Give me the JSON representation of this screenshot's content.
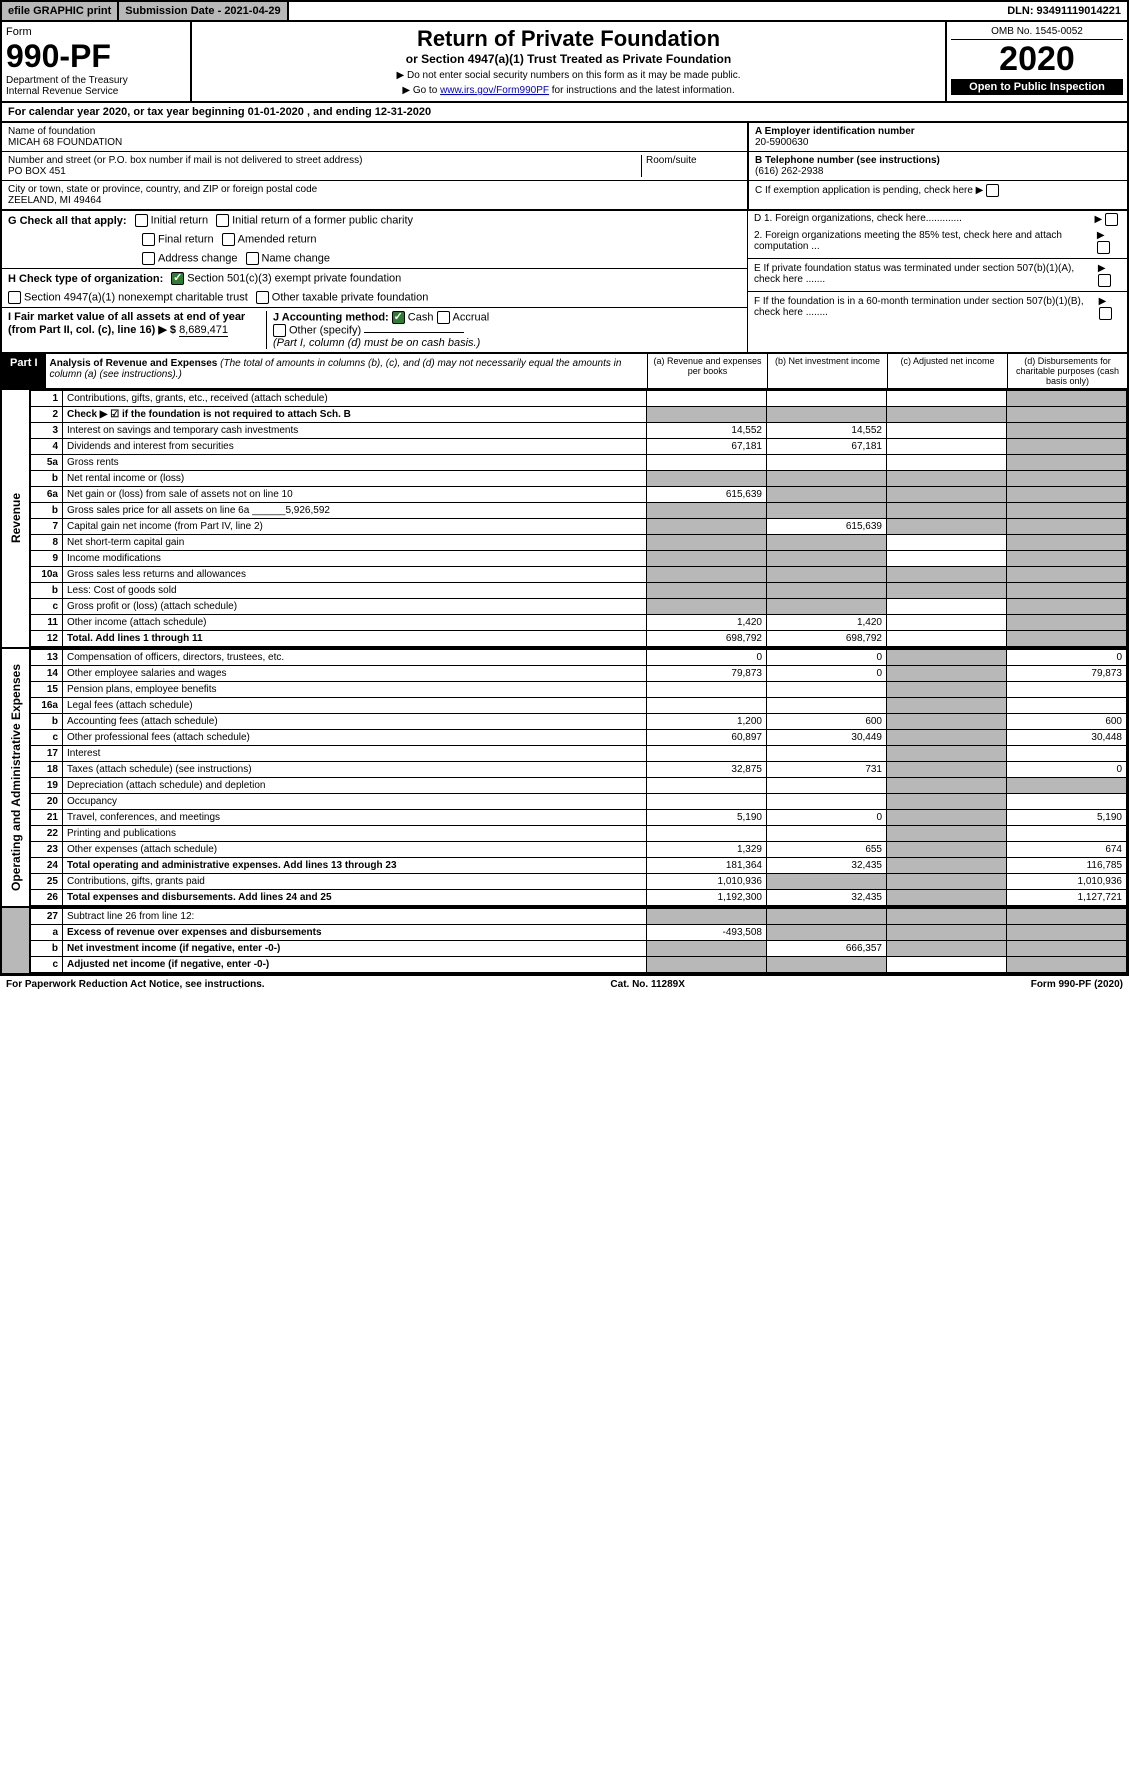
{
  "top": {
    "efile": "efile GRAPHIC print",
    "submission": "Submission Date - 2021-04-29",
    "dln": "DLN: 93491119014221"
  },
  "header": {
    "form_label": "Form",
    "form_num": "990-PF",
    "dept": "Department of the Treasury",
    "irs": "Internal Revenue Service",
    "title": "Return of Private Foundation",
    "subtitle": "or Section 4947(a)(1) Trust Treated as Private Foundation",
    "bullet1": "▶ Do not enter social security numbers on this form as it may be made public.",
    "bullet2_pre": "▶ Go to ",
    "bullet2_link": "www.irs.gov/Form990PF",
    "bullet2_post": " for instructions and the latest information.",
    "omb": "OMB No. 1545-0052",
    "year": "2020",
    "open": "Open to Public Inspection"
  },
  "cal": "For calendar year 2020, or tax year beginning 01-01-2020                          , and ending 12-31-2020",
  "id": {
    "name_label": "Name of foundation",
    "name": "MICAH 68 FOUNDATION",
    "addr_label": "Number and street (or P.O. box number if mail is not delivered to street address)",
    "room_label": "Room/suite",
    "addr": "PO BOX 451",
    "city_label": "City or town, state or province, country, and ZIP or foreign postal code",
    "city": "ZEELAND, MI  49464",
    "a_label": "A Employer identification number",
    "a_val": "20-5900630",
    "b_label": "B Telephone number (see instructions)",
    "b_val": "(616) 262-2938",
    "c_label": "C If exemption application is pending, check here"
  },
  "checks": {
    "g_label": "G Check all that apply:",
    "g1": "Initial return",
    "g2": "Initial return of a former public charity",
    "g3": "Final return",
    "g4": "Amended return",
    "g5": "Address change",
    "g6": "Name change",
    "h_label": "H Check type of organization:",
    "h1": "Section 501(c)(3) exempt private foundation",
    "h2": "Section 4947(a)(1) nonexempt charitable trust",
    "h3": "Other taxable private foundation",
    "i_label": "I Fair market value of all assets at end of year (from Part II, col. (c), line 16) ▶ $",
    "i_val": "8,689,471",
    "j_label": "J Accounting method:",
    "j1": "Cash",
    "j2": "Accrual",
    "j3": "Other (specify)",
    "j_note": "(Part I, column (d) must be on cash basis.)",
    "d1": "D 1. Foreign organizations, check here.............",
    "d2": "2. Foreign organizations meeting the 85% test, check here and attach computation ...",
    "e": "E  If private foundation status was terminated under section 507(b)(1)(A), check here .......",
    "f": "F  If the foundation is in a 60-month termination under section 507(b)(1)(B), check here ........"
  },
  "part1": {
    "label": "Part I",
    "title": "Analysis of Revenue and Expenses",
    "note": "(The total of amounts in columns (b), (c), and (d) may not necessarily equal the amounts in column (a) (see instructions).)",
    "col_a": "(a)    Revenue and expenses per books",
    "col_b": "(b)  Net investment income",
    "col_c": "(c)  Adjusted net income",
    "col_d": "(d)  Disbursements for charitable purposes (cash basis only)"
  },
  "rows": [
    {
      "n": "1",
      "d": "Contributions, gifts, grants, etc., received (attach schedule)",
      "a": "",
      "b": "",
      "c": "",
      "dS": true
    },
    {
      "n": "2",
      "d": "Check ▶ ☑ if the foundation is not required to attach Sch. B",
      "a": "",
      "b": "",
      "c": "",
      "dS": true,
      "bold": true,
      "aS": true,
      "bS": true,
      "cS": true
    },
    {
      "n": "3",
      "d": "Interest on savings and temporary cash investments",
      "a": "14,552",
      "b": "14,552",
      "c": "",
      "dS": true
    },
    {
      "n": "4",
      "d": "Dividends and interest from securities",
      "a": "67,181",
      "b": "67,181",
      "c": "",
      "dS": true
    },
    {
      "n": "5a",
      "d": "Gross rents",
      "a": "",
      "b": "",
      "c": "",
      "dS": true
    },
    {
      "n": "b",
      "d": "Net rental income or (loss)",
      "a": "",
      "aS": true,
      "bS": true,
      "cS": true,
      "dS": true
    },
    {
      "n": "6a",
      "d": "Net gain or (loss) from sale of assets not on line 10",
      "a": "615,639",
      "bS": true,
      "cS": true,
      "dS": true
    },
    {
      "n": "b",
      "d": "Gross sales price for all assets on line 6a ______5,926,592",
      "aS": true,
      "bS": true,
      "cS": true,
      "dS": true
    },
    {
      "n": "7",
      "d": "Capital gain net income (from Part IV, line 2)",
      "aS": true,
      "b": "615,639",
      "cS": true,
      "dS": true
    },
    {
      "n": "8",
      "d": "Net short-term capital gain",
      "aS": true,
      "bS": true,
      "c": "",
      "dS": true
    },
    {
      "n": "9",
      "d": "Income modifications",
      "aS": true,
      "bS": true,
      "c": "",
      "dS": true
    },
    {
      "n": "10a",
      "d": "Gross sales less returns and allowances",
      "aS": true,
      "bS": true,
      "cS": true,
      "dS": true
    },
    {
      "n": "b",
      "d": "Less: Cost of goods sold",
      "aS": true,
      "bS": true,
      "cS": true,
      "dS": true
    },
    {
      "n": "c",
      "d": "Gross profit or (loss) (attach schedule)",
      "aS": true,
      "bS": true,
      "c": "",
      "dS": true
    },
    {
      "n": "11",
      "d": "Other income (attach schedule)",
      "a": "1,420",
      "b": "1,420",
      "c": "",
      "dS": true
    },
    {
      "n": "12",
      "d": "Total. Add lines 1 through 11",
      "a": "698,792",
      "b": "698,792",
      "c": "",
      "dS": true,
      "bold": true
    }
  ],
  "oprows": [
    {
      "n": "13",
      "d": "Compensation of officers, directors, trustees, etc.",
      "a": "0",
      "b": "0",
      "cS": true,
      "dv": "0"
    },
    {
      "n": "14",
      "d": "Other employee salaries and wages",
      "a": "79,873",
      "b": "0",
      "cS": true,
      "dv": "79,873"
    },
    {
      "n": "15",
      "d": "Pension plans, employee benefits",
      "a": "",
      "b": "",
      "cS": true,
      "dv": ""
    },
    {
      "n": "16a",
      "d": "Legal fees (attach schedule)",
      "a": "",
      "b": "",
      "cS": true,
      "dv": ""
    },
    {
      "n": "b",
      "d": "Accounting fees (attach schedule)",
      "a": "1,200",
      "b": "600",
      "cS": true,
      "dv": "600"
    },
    {
      "n": "c",
      "d": "Other professional fees (attach schedule)",
      "a": "60,897",
      "b": "30,449",
      "cS": true,
      "dv": "30,448"
    },
    {
      "n": "17",
      "d": "Interest",
      "a": "",
      "b": "",
      "cS": true,
      "dv": ""
    },
    {
      "n": "18",
      "d": "Taxes (attach schedule) (see instructions)",
      "a": "32,875",
      "b": "731",
      "cS": true,
      "dv": "0"
    },
    {
      "n": "19",
      "d": "Depreciation (attach schedule) and depletion",
      "a": "",
      "b": "",
      "cS": true,
      "dS": true
    },
    {
      "n": "20",
      "d": "Occupancy",
      "a": "",
      "b": "",
      "cS": true,
      "dv": ""
    },
    {
      "n": "21",
      "d": "Travel, conferences, and meetings",
      "a": "5,190",
      "b": "0",
      "cS": true,
      "dv": "5,190"
    },
    {
      "n": "22",
      "d": "Printing and publications",
      "a": "",
      "b": "",
      "cS": true,
      "dv": ""
    },
    {
      "n": "23",
      "d": "Other expenses (attach schedule)",
      "a": "1,329",
      "b": "655",
      "cS": true,
      "dv": "674"
    },
    {
      "n": "24",
      "d": "Total operating and administrative expenses. Add lines 13 through 23",
      "a": "181,364",
      "b": "32,435",
      "cS": true,
      "dv": "116,785",
      "bold": true
    },
    {
      "n": "25",
      "d": "Contributions, gifts, grants paid",
      "a": "1,010,936",
      "bS": true,
      "cS": true,
      "dv": "1,010,936"
    },
    {
      "n": "26",
      "d": "Total expenses and disbursements. Add lines 24 and 25",
      "a": "1,192,300",
      "b": "32,435",
      "cS": true,
      "dv": "1,127,721",
      "bold": true
    }
  ],
  "endrows": [
    {
      "n": "27",
      "d": "Subtract line 26 from line 12:",
      "aS": true,
      "bS": true,
      "cS": true,
      "dS": true
    },
    {
      "n": "a",
      "d": "Excess of revenue over expenses and disbursements",
      "a": "-493,508",
      "bS": true,
      "cS": true,
      "dS": true,
      "bold": true
    },
    {
      "n": "b",
      "d": "Net investment income (if negative, enter -0-)",
      "aS": true,
      "b": "666,357",
      "cS": true,
      "dS": true,
      "bold": true
    },
    {
      "n": "c",
      "d": "Adjusted net income (if negative, enter -0-)",
      "aS": true,
      "bS": true,
      "c": "",
      "dS": true,
      "bold": true
    }
  ],
  "footer": {
    "left": "For Paperwork Reduction Act Notice, see instructions.",
    "mid": "Cat. No. 11289X",
    "right": "Form 990-PF (2020)"
  },
  "side": {
    "rev": "Revenue",
    "op": "Operating and Administrative Expenses"
  }
}
